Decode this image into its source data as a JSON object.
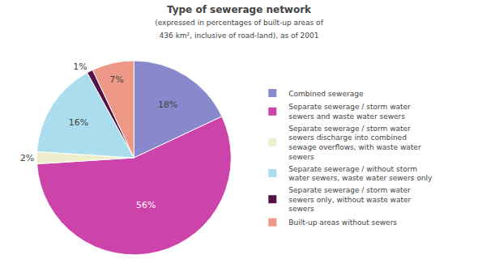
{
  "chart_data": {
    "type": "pie",
    "title": "Type of sewerage network",
    "subtitle": "(expressed in percentages of built-up areas of\n436 km², inclusive of road-land), as of 2001",
    "categories": [
      "Combined sewerage",
      "Separate sewerage / storm water\nsewers and waste water sewers",
      "Separate sewerage / storm water\nsewers discharge into combined\nsewage overflows, with waste water\nsewers",
      "Separate sewerage / without storm\nwater sewers, waste water sewers only",
      "Separate sewerage / storm water\nsewers only, without waste water\nsewers",
      "Built-up areas without sewers"
    ],
    "values": [
      18,
      56,
      2,
      16,
      1,
      7
    ],
    "value_labels": [
      "18%",
      "56%",
      "2%",
      "16%",
      "1%",
      "7%"
    ],
    "colors": [
      "#8888cc",
      "#cc44aa",
      "#eeeecc",
      "#aaddee",
      "#551144",
      "#ee9988"
    ],
    "data_labels": true,
    "legend": "right"
  }
}
